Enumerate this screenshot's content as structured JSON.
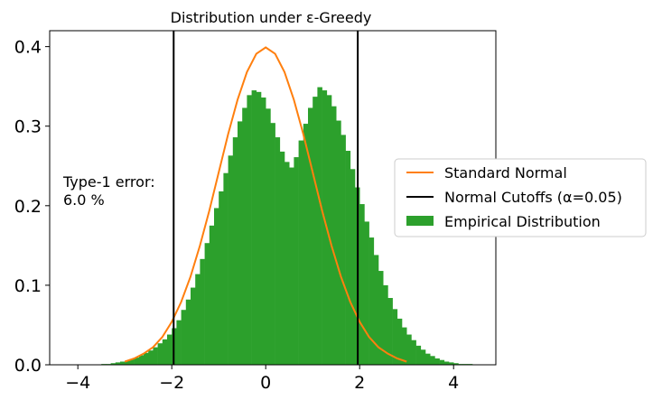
{
  "chart_data": {
    "type": "bar",
    "title": "Distribution under ε-Greedy",
    "xlabel": "",
    "ylabel": "",
    "xlim": [
      -4.6,
      4.9
    ],
    "ylim": [
      0,
      0.42
    ],
    "xticks": [
      -4,
      -2,
      0,
      2,
      4
    ],
    "xtick_labels": [
      "−4",
      "−2",
      "0",
      "2",
      "4"
    ],
    "yticks": [
      0.0,
      0.1,
      0.2,
      0.3,
      0.4
    ],
    "ytick_labels": [
      "0.0",
      "0.1",
      "0.2",
      "0.3",
      "0.4"
    ],
    "grid": false,
    "legend_position": "center-right",
    "series": [
      {
        "name": "Standard Normal",
        "kind": "line",
        "color": "#ff7f0e",
        "x": [
          -3.0,
          -2.8,
          -2.6,
          -2.4,
          -2.2,
          -2.0,
          -1.8,
          -1.6,
          -1.4,
          -1.2,
          -1.0,
          -0.8,
          -0.6,
          -0.4,
          -0.2,
          0.0,
          0.2,
          0.4,
          0.6,
          0.8,
          1.0,
          1.2,
          1.4,
          1.6,
          1.8,
          2.0,
          2.2,
          2.4,
          2.6,
          2.8,
          3.0
        ],
        "y": [
          0.004,
          0.008,
          0.014,
          0.022,
          0.035,
          0.054,
          0.079,
          0.111,
          0.15,
          0.194,
          0.242,
          0.29,
          0.333,
          0.368,
          0.391,
          0.399,
          0.391,
          0.368,
          0.333,
          0.29,
          0.242,
          0.194,
          0.15,
          0.111,
          0.079,
          0.054,
          0.035,
          0.022,
          0.014,
          0.008,
          0.004
        ]
      },
      {
        "name": "Normal Cutoffs (α=0.05)",
        "kind": "vline",
        "color": "#000000",
        "x": [
          -1.96,
          1.96
        ]
      },
      {
        "name": "Empirical Distribution",
        "kind": "histogram",
        "color": "#2ca02c",
        "bin_width": 0.1,
        "bin_start": -3.5,
        "values": [
          0.001,
          0.001,
          0.002,
          0.003,
          0.004,
          0.005,
          0.007,
          0.009,
          0.012,
          0.015,
          0.018,
          0.022,
          0.027,
          0.032,
          0.038,
          0.046,
          0.056,
          0.069,
          0.082,
          0.097,
          0.114,
          0.133,
          0.153,
          0.175,
          0.197,
          0.218,
          0.241,
          0.263,
          0.286,
          0.306,
          0.323,
          0.339,
          0.345,
          0.343,
          0.336,
          0.322,
          0.304,
          0.286,
          0.268,
          0.255,
          0.248,
          0.261,
          0.282,
          0.303,
          0.323,
          0.337,
          0.349,
          0.345,
          0.339,
          0.325,
          0.307,
          0.289,
          0.269,
          0.246,
          0.223,
          0.202,
          0.18,
          0.16,
          0.138,
          0.118,
          0.1,
          0.084,
          0.07,
          0.058,
          0.047,
          0.038,
          0.031,
          0.024,
          0.019,
          0.014,
          0.011,
          0.008,
          0.006,
          0.004,
          0.003,
          0.002,
          0.001,
          0.001,
          0.001
        ]
      }
    ],
    "annotation": "Type-1 error:\n6.0 %"
  },
  "annotation": {
    "line1": "Type-1 error:",
    "line2": "6.0 %"
  },
  "legend": [
    {
      "label": "Standard Normal",
      "kind": "line",
      "color": "#ff7f0e"
    },
    {
      "label": "Normal Cutoffs (α=0.05)",
      "kind": "line",
      "color": "#000000"
    },
    {
      "label": "Empirical Distribution",
      "kind": "patch",
      "color": "#2ca02c"
    }
  ]
}
